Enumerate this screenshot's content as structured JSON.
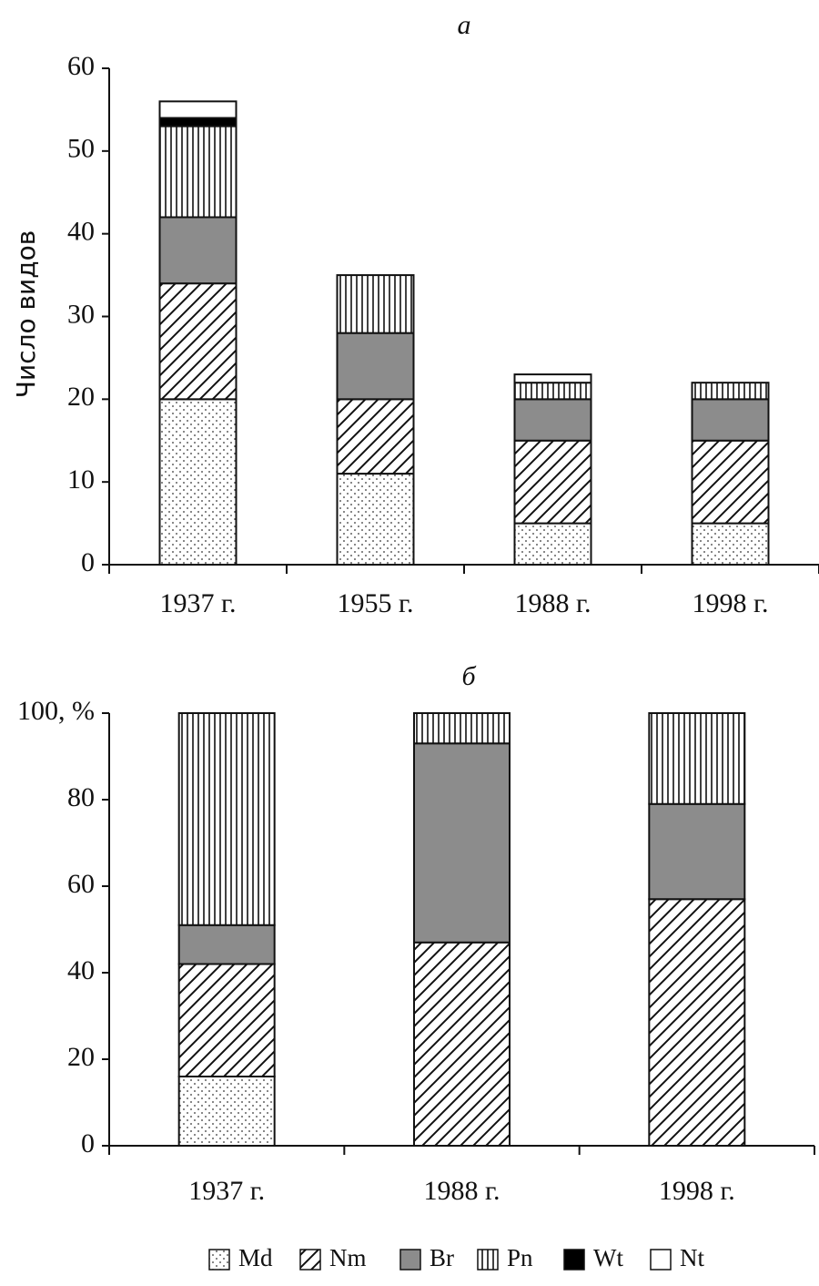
{
  "chart_data": [
    {
      "type": "stacked_bar",
      "title": "а",
      "ylabel": "Число видов",
      "categories": [
        "1937 г.",
        "1955 г.",
        "1988 г.",
        "1998 г."
      ],
      "ylim": [
        0,
        60
      ],
      "yticks": [
        0,
        10,
        20,
        30,
        40,
        50,
        60
      ],
      "series": [
        {
          "name": "Md",
          "pattern": "dots",
          "values": [
            20,
            11,
            5,
            5
          ]
        },
        {
          "name": "Nm",
          "pattern": "diagonal",
          "values": [
            14,
            9,
            10,
            10
          ]
        },
        {
          "name": "Br",
          "pattern": "gray",
          "values": [
            8,
            8,
            5,
            5
          ]
        },
        {
          "name": "Pn",
          "pattern": "vertical",
          "values": [
            11,
            7,
            2,
            2
          ]
        },
        {
          "name": "Wt",
          "pattern": "black",
          "values": [
            1,
            0,
            0,
            0
          ]
        },
        {
          "name": "Nt",
          "pattern": "white",
          "values": [
            2,
            0,
            1,
            0
          ]
        }
      ]
    },
    {
      "type": "stacked_bar",
      "title": "б",
      "categories": [
        "1937 г.",
        "1988 г.",
        "1998 г."
      ],
      "ylim": [
        0,
        100
      ],
      "yticks": [
        0,
        20,
        40,
        60,
        80,
        {
          "value": 100,
          "label": "100, %"
        }
      ],
      "legend": "bottom",
      "series": [
        {
          "name": "Md",
          "pattern": "dots",
          "values": [
            16,
            0,
            0
          ]
        },
        {
          "name": "Nm",
          "pattern": "diagonal",
          "values": [
            26,
            47,
            57
          ]
        },
        {
          "name": "Br",
          "pattern": "gray",
          "values": [
            9,
            46,
            22
          ]
        },
        {
          "name": "Pn",
          "pattern": "vertical",
          "values": [
            49,
            7,
            21
          ]
        },
        {
          "name": "Wt",
          "pattern": "black",
          "values": [
            0,
            0,
            0
          ]
        },
        {
          "name": "Nt",
          "pattern": "white",
          "values": [
            0,
            0,
            0
          ]
        }
      ]
    }
  ]
}
